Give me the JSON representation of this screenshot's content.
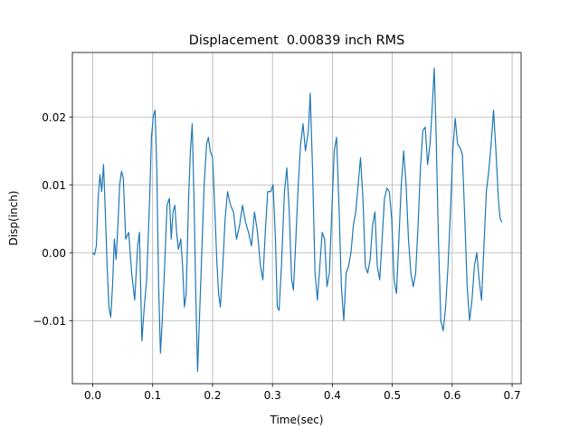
{
  "chart_data": {
    "type": "line",
    "title": "Displacement  0.00839 inch RMS",
    "xlabel": "Time(sec)",
    "ylabel": "Disp(inch)",
    "color": "#1f77b4",
    "grid": true,
    "xlim": [
      -0.034,
      0.715
    ],
    "ylim": [
      -0.0193,
      0.0295
    ],
    "xticks": [
      {
        "value": 0,
        "label": "0.0"
      },
      0.1,
      0.2,
      0.3,
      0.4,
      0.5,
      0.6,
      0.7
    ],
    "yticks": [
      {
        "value": -0.01,
        "label": "−0.01"
      },
      {
        "value": 0,
        "label": "0.00"
      },
      0.01,
      0.02
    ],
    "x": [
      0.0,
      0.003,
      0.006,
      0.009,
      0.012,
      0.015,
      0.018,
      0.021,
      0.024,
      0.027,
      0.03,
      0.033,
      0.036,
      0.039,
      0.042,
      0.045,
      0.048,
      0.051,
      0.055,
      0.06,
      0.065,
      0.07,
      0.075,
      0.078,
      0.082,
      0.086,
      0.09,
      0.095,
      0.098,
      0.101,
      0.104,
      0.107,
      0.11,
      0.113,
      0.116,
      0.12,
      0.124,
      0.128,
      0.131,
      0.134,
      0.137,
      0.14,
      0.143,
      0.147,
      0.15,
      0.153,
      0.156,
      0.16,
      0.163,
      0.166,
      0.169,
      0.172,
      0.175,
      0.178,
      0.182,
      0.186,
      0.19,
      0.193,
      0.196,
      0.2,
      0.203,
      0.207,
      0.21,
      0.213,
      0.217,
      0.221,
      0.225,
      0.23,
      0.235,
      0.24,
      0.245,
      0.25,
      0.255,
      0.26,
      0.265,
      0.27,
      0.275,
      0.28,
      0.284,
      0.288,
      0.292,
      0.297,
      0.301,
      0.305,
      0.308,
      0.311,
      0.315,
      0.32,
      0.324,
      0.328,
      0.332,
      0.335,
      0.339,
      0.343,
      0.347,
      0.351,
      0.355,
      0.36,
      0.363,
      0.367,
      0.371,
      0.375,
      0.379,
      0.383,
      0.387,
      0.391,
      0.395,
      0.399,
      0.403,
      0.407,
      0.411,
      0.415,
      0.419,
      0.423,
      0.427,
      0.431,
      0.435,
      0.439,
      0.443,
      0.447,
      0.451,
      0.455,
      0.459,
      0.463,
      0.467,
      0.471,
      0.475,
      0.479,
      0.483,
      0.487,
      0.491,
      0.495,
      0.499,
      0.503,
      0.507,
      0.511,
      0.515,
      0.519,
      0.523,
      0.527,
      0.531,
      0.535,
      0.539,
      0.543,
      0.547,
      0.551,
      0.555,
      0.559,
      0.563,
      0.567,
      0.57,
      0.573,
      0.577,
      0.581,
      0.585,
      0.589,
      0.593,
      0.597,
      0.601,
      0.605,
      0.609,
      0.613,
      0.617,
      0.621,
      0.625,
      0.629,
      0.633,
      0.637,
      0.641,
      0.645,
      0.649,
      0.653,
      0.657,
      0.661,
      0.665,
      0.669,
      0.673,
      0.677,
      0.68,
      0.683
    ],
    "values": [
      0.0,
      -0.0003,
      0.001,
      0.008,
      0.0115,
      0.009,
      0.013,
      0.006,
      -0.002,
      -0.008,
      -0.0095,
      -0.005,
      0.002,
      -0.001,
      0.004,
      0.01,
      0.012,
      0.011,
      0.002,
      0.003,
      -0.003,
      -0.007,
      0.001,
      0.003,
      -0.013,
      -0.008,
      -0.004,
      0.008,
      0.017,
      0.02,
      0.021,
      0.012,
      -0.005,
      -0.0148,
      -0.01,
      -0.002,
      0.007,
      0.008,
      0.002,
      0.006,
      0.007,
      0.003,
      0.0005,
      0.002,
      -0.002,
      -0.008,
      -0.006,
      0.008,
      0.015,
      0.019,
      0.008,
      -0.006,
      -0.0175,
      -0.01,
      0.0,
      0.01,
      0.016,
      0.017,
      0.015,
      0.014,
      0.008,
      -0.001,
      -0.006,
      -0.008,
      -0.002,
      0.005,
      0.009,
      0.007,
      0.006,
      0.002,
      0.004,
      0.007,
      0.0045,
      0.003,
      0.001,
      0.006,
      0.003,
      -0.002,
      -0.004,
      0.003,
      0.009,
      0.009,
      0.01,
      0.002,
      -0.008,
      -0.0085,
      -0.002,
      0.009,
      0.0125,
      0.006,
      -0.004,
      -0.0055,
      0.002,
      0.01,
      0.016,
      0.019,
      0.015,
      0.018,
      0.0235,
      0.012,
      -0.003,
      -0.007,
      -0.002,
      0.003,
      0.002,
      -0.005,
      -0.003,
      0.006,
      0.015,
      0.017,
      0.007,
      -0.005,
      -0.01,
      -0.003,
      -0.002,
      0.0,
      0.004,
      0.006,
      0.01,
      0.014,
      0.008,
      -0.002,
      -0.003,
      -0.001,
      0.004,
      0.006,
      -0.002,
      -0.004,
      0.002,
      0.008,
      0.0095,
      0.009,
      0.005,
      -0.004,
      -0.006,
      0.002,
      0.01,
      0.015,
      0.01,
      0.002,
      -0.003,
      -0.005,
      -0.003,
      0.004,
      0.0125,
      0.018,
      0.0185,
      0.013,
      0.016,
      0.022,
      0.0272,
      0.018,
      0.002,
      -0.01,
      -0.0115,
      -0.008,
      -0.002,
      0.006,
      0.015,
      0.0198,
      0.016,
      0.0155,
      0.0145,
      0.005,
      -0.005,
      -0.01,
      -0.007,
      -0.002,
      0.0,
      -0.004,
      -0.007,
      0.001,
      0.009,
      0.012,
      0.016,
      0.021,
      0.015,
      0.008,
      0.005,
      0.0045
    ]
  }
}
